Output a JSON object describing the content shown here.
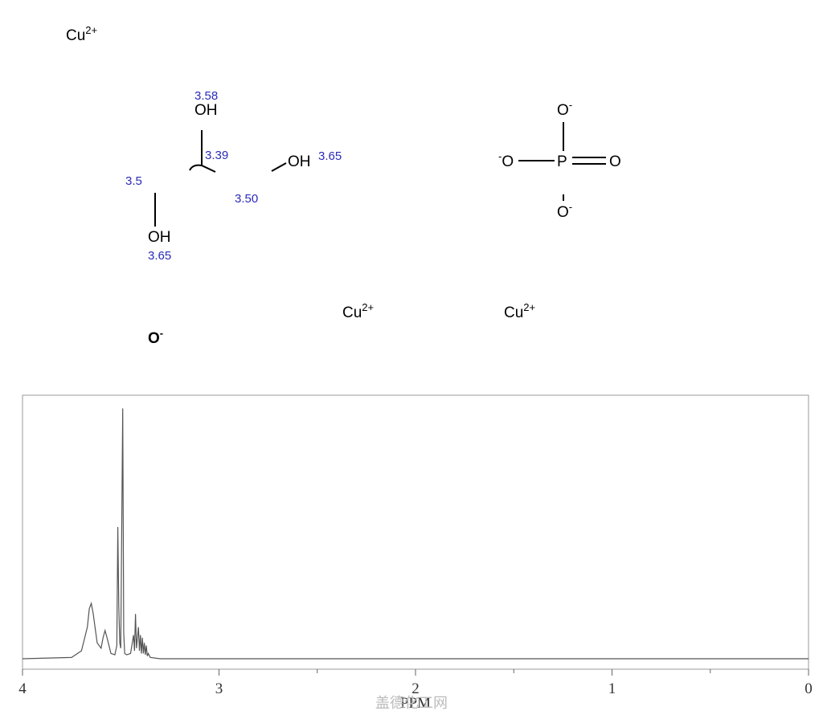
{
  "structure": {
    "ions": [
      {
        "symbol": "Cu",
        "charge": "2+"
      },
      {
        "symbol": "Cu",
        "charge": "2+"
      },
      {
        "symbol": "Cu",
        "charge": "2+"
      }
    ],
    "glycerol": {
      "atoms": [
        "OH",
        "OH",
        "OH"
      ],
      "shifts": [
        "3.58",
        "3.39",
        "3.65",
        "3.5",
        "3.50",
        "3.65"
      ]
    },
    "phosphate": {
      "atoms": [
        {
          "symbol": "O",
          "charge": "-"
        },
        {
          "symbol": "O",
          "charge": "-"
        },
        {
          "symbol": "P"
        },
        {
          "symbol": "O"
        },
        {
          "symbol": "O",
          "charge": "-"
        }
      ]
    },
    "oxide": {
      "symbol": "O",
      "charge": "-"
    }
  },
  "chart_data": {
    "type": "line",
    "x_label": "PPM",
    "x": [
      4.0,
      3.75,
      3.7,
      3.67,
      3.66,
      3.65,
      3.64,
      3.62,
      3.6,
      3.59,
      3.58,
      3.57,
      3.55,
      3.53,
      3.52,
      3.515,
      3.51,
      3.505,
      3.5,
      3.495,
      3.49,
      3.485,
      3.48,
      3.47,
      3.45,
      3.435,
      3.43,
      3.425,
      3.42,
      3.41,
      3.405,
      3.4,
      3.395,
      3.39,
      3.385,
      3.38,
      3.375,
      3.37,
      3.365,
      3.36,
      3.35,
      3.3,
      0.0
    ],
    "values": [
      0.0,
      0.005,
      0.03,
      0.12,
      0.19,
      0.21,
      0.17,
      0.06,
      0.04,
      0.08,
      0.107,
      0.08,
      0.02,
      0.015,
      0.05,
      0.5,
      0.2,
      0.06,
      0.04,
      0.5,
      0.95,
      0.1,
      0.02,
      0.015,
      0.02,
      0.09,
      0.03,
      0.17,
      0.04,
      0.12,
      0.03,
      0.09,
      0.02,
      0.08,
      0.02,
      0.06,
      0.015,
      0.05,
      0.01,
      0.02,
      0.005,
      0.0,
      0.0
    ],
    "color": "#555555",
    "xlim": [
      4,
      0
    ],
    "ylim": [
      0,
      1
    ],
    "xticks": [
      4,
      3,
      2,
      1,
      0
    ],
    "minor_xticks": [
      2.5,
      1.5,
      0.5
    ],
    "watermark": "盖德化工网"
  }
}
